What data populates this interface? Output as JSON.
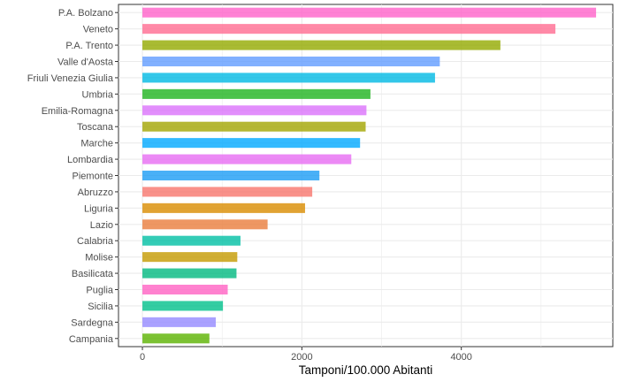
{
  "chart_data": {
    "type": "bar",
    "orientation": "horizontal",
    "xlabel": "Tamponi/100.000 Abitanti",
    "ylabel": "",
    "xlim": [
      -300,
      5900
    ],
    "xticks": [
      0,
      2000,
      4000
    ],
    "grid": true,
    "legend": "none",
    "categories": [
      "P.A. Bolzano",
      "Veneto",
      "P.A. Trento",
      "Valle d'Aosta",
      "Friuli Venezia Giulia",
      "Umbria",
      "Emilia-Romagna",
      "Toscana",
      "Marche",
      "Lombardia",
      "Piemonte",
      "Abruzzo",
      "Liguria",
      "Lazio",
      "Calabria",
      "Molise",
      "Basilicata",
      "Puglia",
      "Sicilia",
      "Sardegna",
      "Campania"
    ],
    "values": [
      5690,
      5180,
      4490,
      3730,
      3670,
      2860,
      2810,
      2800,
      2730,
      2620,
      2220,
      2130,
      2040,
      1570,
      1230,
      1190,
      1180,
      1070,
      1010,
      920,
      840
    ],
    "colors": [
      "#ff61c9",
      "#ff6c91",
      "#93aa00",
      "#619cff",
      "#00b9e3",
      "#1fb41f",
      "#db72fb",
      "#a3a500",
      "#00a9ff",
      "#e76bf3",
      "#1b9cf5",
      "#f8766d",
      "#d98c00",
      "#ea7d3c",
      "#00bfa4",
      "#c49a00",
      "#00b97f",
      "#ff61c3",
      "#00c08b",
      "#9589ff",
      "#5bb300"
    ]
  }
}
